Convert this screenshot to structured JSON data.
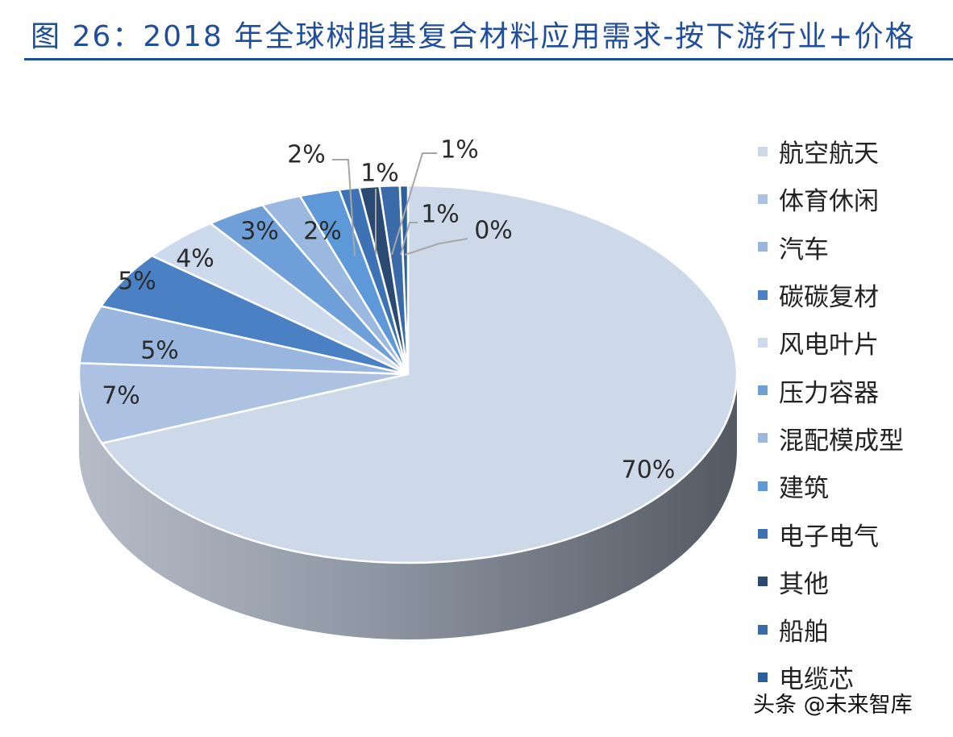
{
  "title": "图 26：2018 年全球树脂基复合材料应用需求-按下游行业+价格",
  "watermark": "头条 @未来智库",
  "chart_data": {
    "type": "pie",
    "title": "图 26：2018 年全球树脂基复合材料应用需求-按下游行业+价格",
    "legend_position": "right",
    "slices": [
      {
        "name": "航空航天",
        "value": 70,
        "label": "70%",
        "color": "#cdd8e9"
      },
      {
        "name": "体育休闲",
        "value": 7,
        "label": "7%",
        "color": "#adc2e2"
      },
      {
        "name": "汽车",
        "value": 5,
        "label": "5%",
        "color": "#98b6de"
      },
      {
        "name": "碳碳复材",
        "value": 5,
        "label": "5%",
        "color": "#4a80c4"
      },
      {
        "name": "风电叶片",
        "value": 4,
        "label": "4%",
        "color": "#cdd9ec"
      },
      {
        "name": "压力容器",
        "value": 3,
        "label": "3%",
        "color": "#6e9fd8"
      },
      {
        "name": "混配模成型",
        "value": 2,
        "label": "2%",
        "color": "#9ab8e0"
      },
      {
        "name": "建筑",
        "value": 2,
        "label": "2%",
        "color": "#5d98d8"
      },
      {
        "name": "电子电气",
        "value": 1,
        "label": "1%",
        "color": "#3d73b5"
      },
      {
        "name": "其他",
        "value": 1,
        "label": "1%",
        "color": "#2a4a73"
      },
      {
        "name": "船舶",
        "value": 1,
        "label": "1%",
        "color": "#3a6aa8"
      },
      {
        "name": "电缆芯",
        "value": 0.4,
        "label": "0%",
        "color": "#2d5f9a"
      }
    ]
  }
}
